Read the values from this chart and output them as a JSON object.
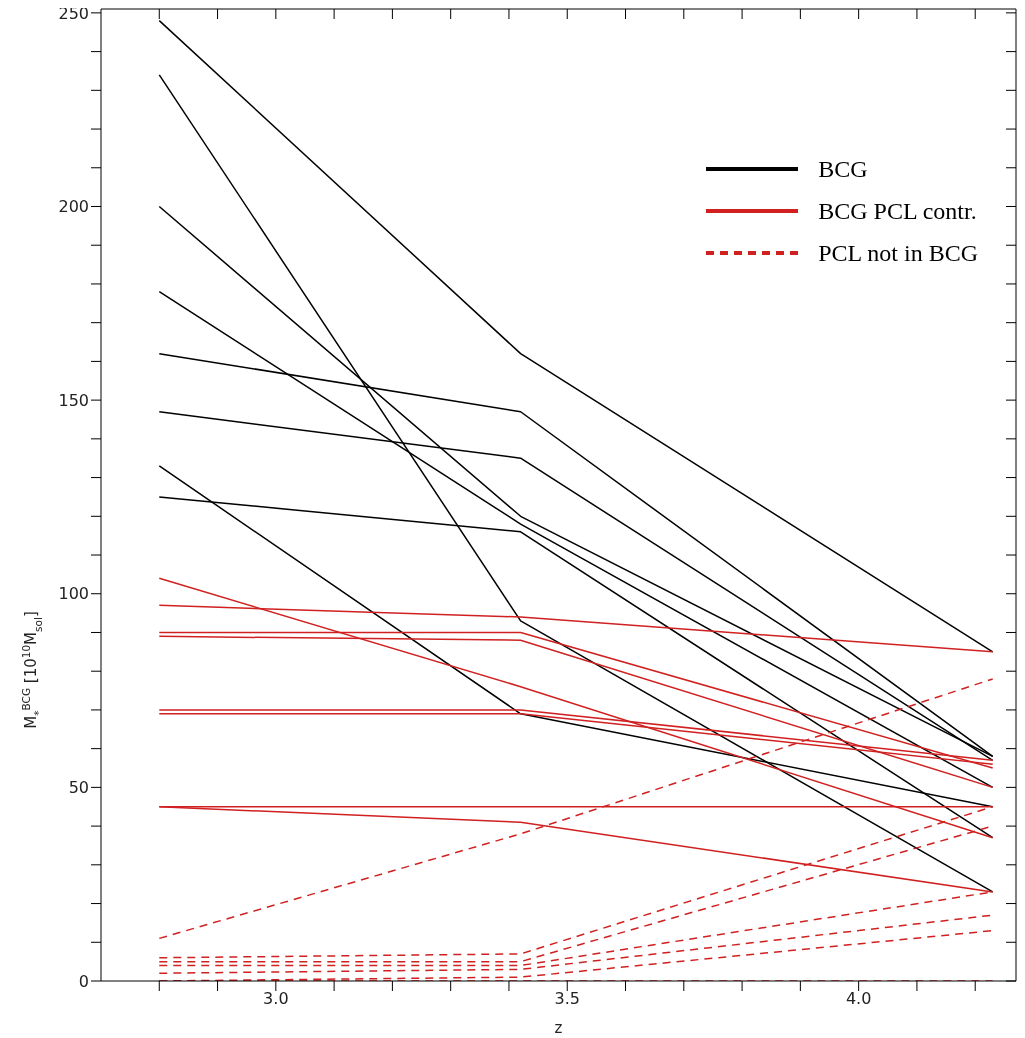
{
  "chart_data": {
    "type": "line",
    "xlabel": "z",
    "ylabel": "M$_{*}$$^{BCG}$ [10$^{10}$M$_{sol}$]",
    "x": [
      2.8,
      3.42,
      4.23
    ],
    "xlim": [
      2.7,
      4.27
    ],
    "xticks": [
      {
        "value": 2.8,
        "label": null
      },
      {
        "value": 2.9,
        "label": null
      },
      {
        "value": 3.0,
        "label": "3.0"
      },
      {
        "value": 3.1,
        "label": null
      },
      {
        "value": 3.2,
        "label": null
      },
      {
        "value": 3.3,
        "label": null
      },
      {
        "value": 3.4,
        "label": null
      },
      3.5,
      {
        "value": 3.6,
        "label": null
      },
      {
        "value": 3.7,
        "label": null
      },
      {
        "value": 3.8,
        "label": null
      },
      {
        "value": 3.9,
        "label": null
      },
      {
        "value": 4.0,
        "label": "4.0"
      },
      {
        "value": 4.1,
        "label": null
      },
      {
        "value": 4.2,
        "label": null
      }
    ],
    "ylim": [
      0,
      251
    ],
    "yticks": [
      0,
      {
        "value": 10,
        "label": null
      },
      {
        "value": 20,
        "label": null
      },
      {
        "value": 30,
        "label": null
      },
      {
        "value": 40,
        "label": null
      },
      50,
      {
        "value": 60,
        "label": null
      },
      {
        "value": 70,
        "label": null
      },
      {
        "value": 80,
        "label": null
      },
      {
        "value": 90,
        "label": null
      },
      100,
      {
        "value": 110,
        "label": null
      },
      {
        "value": 120,
        "label": null
      },
      {
        "value": 130,
        "label": null
      },
      {
        "value": 140,
        "label": null
      },
      150,
      {
        "value": 160,
        "label": null
      },
      {
        "value": 170,
        "label": null
      },
      {
        "value": 180,
        "label": null
      },
      {
        "value": 190,
        "label": null
      },
      200,
      {
        "value": 210,
        "label": null
      },
      {
        "value": 220,
        "label": null
      },
      {
        "value": 230,
        "label": null
      },
      {
        "value": 240,
        "label": null
      },
      250
    ],
    "grid": false,
    "legend": "top right",
    "marker": "none",
    "line_style": "solid",
    "series": [
      {
        "name": "BCG",
        "color": "#000000",
        "values": [
          248,
          162,
          85
        ]
      },
      {
        "color": "#000000",
        "values": [
          234,
          93,
          23
        ]
      },
      {
        "color": "#000000",
        "values": [
          200,
          120,
          58
        ]
      },
      {
        "color": "#000000",
        "values": [
          178,
          118,
          50
        ]
      },
      {
        "color": "#000000",
        "values": [
          162,
          147,
          58
        ]
      },
      {
        "color": "#000000",
        "values": [
          147,
          135,
          57
        ]
      },
      {
        "color": "#000000",
        "values": [
          133,
          69,
          45
        ]
      },
      {
        "color": "#000000",
        "values": [
          125,
          116,
          37
        ]
      },
      {
        "name": "BCG PCL contr.",
        "color": "#d02020",
        "values": [
          104,
          76,
          37
        ]
      },
      {
        "color": "#d02020",
        "values": [
          97,
          94,
          85
        ]
      },
      {
        "color": "#d02020",
        "values": [
          90,
          90,
          55
        ]
      },
      {
        "color": "#d02020",
        "values": [
          89,
          88,
          50
        ]
      },
      {
        "color": "#d02020",
        "values": [
          70,
          70,
          57
        ]
      },
      {
        "color": "#d02020",
        "values": [
          69,
          69,
          56
        ]
      },
      {
        "color": "#d02020",
        "values": [
          45,
          45,
          45
        ]
      },
      {
        "color": "#d02020",
        "values": [
          45,
          41,
          23
        ]
      },
      {
        "name": "PCL not in BCG",
        "color": "#d02020",
        "line_style": "dashed",
        "values": [
          11,
          38,
          78
        ]
      },
      {
        "color": "#d02020",
        "line_style": "dashed",
        "values": [
          6,
          7,
          45
        ]
      },
      {
        "color": "#d02020",
        "line_style": "dashed",
        "values": [
          5,
          5,
          40
        ]
      },
      {
        "color": "#d02020",
        "line_style": "dashed",
        "values": [
          4,
          4,
          23
        ]
      },
      {
        "color": "#d02020",
        "line_style": "dashed",
        "values": [
          2,
          3,
          17
        ]
      },
      {
        "color": "#d02020",
        "line_style": "dashed",
        "values": [
          0,
          1,
          13
        ]
      },
      {
        "color": "#d02020",
        "line_style": "dashed",
        "values": [
          0,
          0,
          0
        ]
      }
    ]
  }
}
